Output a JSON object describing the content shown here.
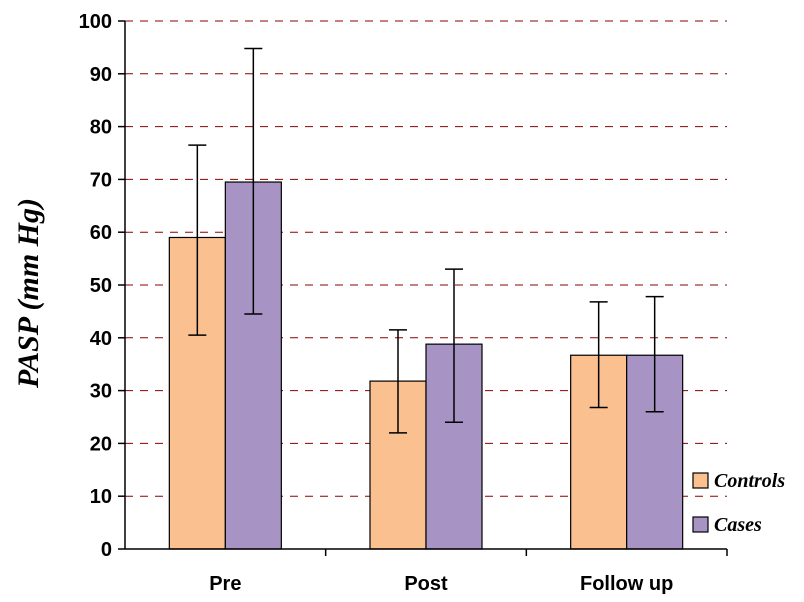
{
  "chart_data": {
    "type": "bar",
    "categories": [
      "Pre",
      "Post",
      "Follow up"
    ],
    "series": [
      {
        "name": "Controls",
        "color": "#FAC090",
        "values": [
          59,
          31.8,
          36.7
        ],
        "error_low": [
          40.5,
          22,
          26.8
        ],
        "error_high": [
          76.5,
          41.5,
          46.8
        ]
      },
      {
        "name": "Cases",
        "color": "#A894C4",
        "values": [
          69.5,
          38.8,
          36.7
        ],
        "error_low": [
          44.5,
          24,
          26
        ],
        "error_high": [
          94.8,
          53,
          47.8
        ]
      }
    ],
    "xlabel": "",
    "ylabel": "PASP (mm Hg)",
    "ylim": [
      0,
      100
    ],
    "yticks": [
      "0",
      "10",
      "20",
      "30",
      "40",
      "50",
      "60",
      "70",
      "80",
      "90",
      "100"
    ],
    "grid": true,
    "grid_color": "#8B0000",
    "legend_position": "bottom-right"
  }
}
